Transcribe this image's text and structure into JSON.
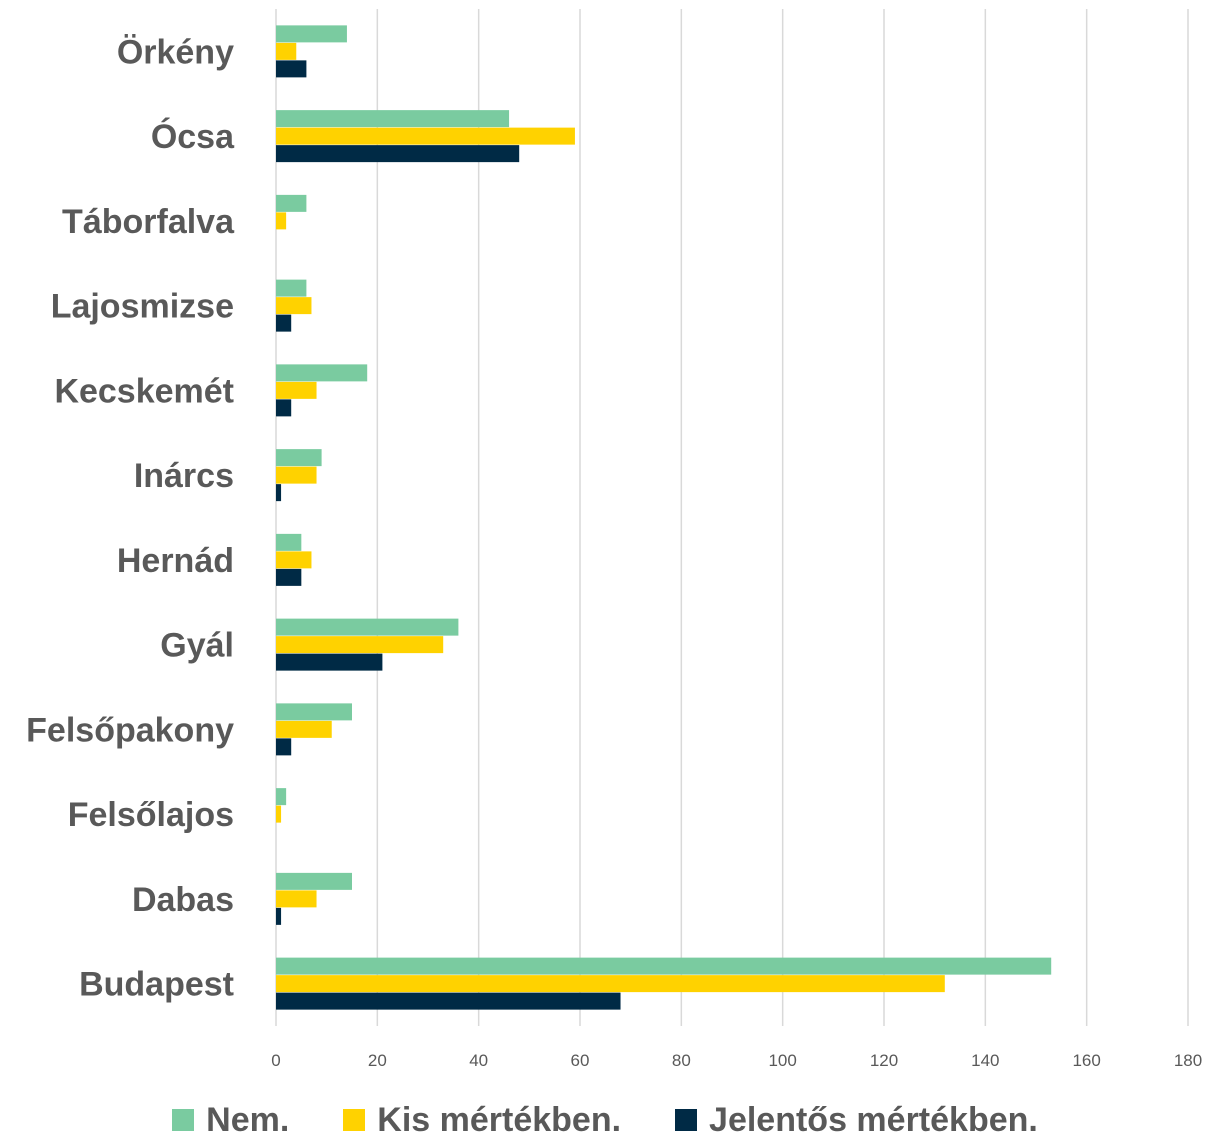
{
  "chart_data": {
    "type": "bar",
    "orientation": "horizontal",
    "categories": [
      "Örkény",
      "Ócsa",
      "Táborfalva",
      "Lajosmizse",
      "Kecskemét",
      "Inárcs",
      "Hernád",
      "Gyál",
      "Felsőpakony",
      "Felsőlajos",
      "Dabas",
      "Budapest"
    ],
    "series": [
      {
        "name": "Nem.",
        "color": "#7acba0",
        "values": [
          14,
          46,
          6,
          6,
          18,
          9,
          5,
          36,
          15,
          2,
          15,
          153
        ]
      },
      {
        "name": "Kis mértékben.",
        "color": "#ffd200",
        "values": [
          4,
          59,
          2,
          7,
          8,
          8,
          7,
          33,
          11,
          1,
          8,
          132
        ]
      },
      {
        "name": "Jelentős mértékben.",
        "color": "#002a45",
        "values": [
          6,
          48,
          0,
          3,
          3,
          1,
          5,
          21,
          3,
          0,
          1,
          68
        ]
      }
    ],
    "xlim": [
      0,
      180
    ],
    "xticks": [
      0,
      20,
      40,
      60,
      80,
      100,
      120,
      140,
      160,
      180
    ],
    "grid": "vertical",
    "legend_position": "bottom"
  }
}
